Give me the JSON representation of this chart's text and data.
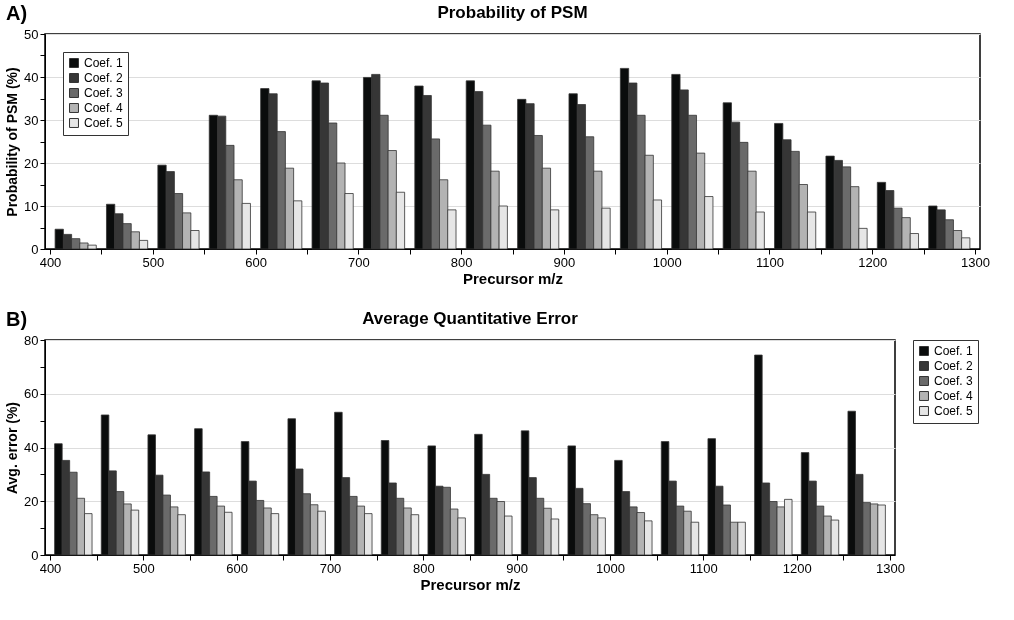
{
  "chart_data": [
    {
      "type": "bar",
      "title": "Probability of PSM",
      "xlabel": "Precursor m/z",
      "ylabel": "Probability of PSM (%)",
      "annotations": [
        "A)"
      ],
      "xlim": [
        400,
        1300
      ],
      "xticks": [
        400,
        {
          "value": 450,
          "label": null
        },
        500,
        {
          "value": 550,
          "label": null
        },
        600,
        {
          "value": 650,
          "label": null
        },
        700,
        {
          "value": 750,
          "label": null
        },
        800,
        {
          "value": 850,
          "label": null
        },
        900,
        {
          "value": 950,
          "label": null
        },
        1000,
        {
          "value": 1050,
          "label": null
        },
        1100,
        {
          "value": 1150,
          "label": null
        },
        1200,
        {
          "value": 1250,
          "label": null
        },
        1300
      ],
      "ylim": [
        0,
        50
      ],
      "yticks": [
        0,
        {
          "value": 5,
          "label": null
        },
        10,
        {
          "value": 15,
          "label": null
        },
        20,
        {
          "value": 25,
          "label": null
        },
        30,
        {
          "value": 35,
          "label": null
        },
        40,
        {
          "value": 45,
          "label": null
        },
        50
      ],
      "grid": "y",
      "legend": "top left",
      "series": [
        {
          "name": "Coef. 1",
          "color": "#0a0c0c",
          "x": [
            409,
            459,
            509,
            559,
            609,
            659,
            709,
            759,
            809,
            859,
            909,
            959,
            1009,
            1059,
            1109,
            1159,
            1209,
            1259
          ],
          "values": [
            4.6,
            10.4,
            19.5,
            31.1,
            37.3,
            39.1,
            39.9,
            37.9,
            39.1,
            34.8,
            36.1,
            42.0,
            40.6,
            34.0,
            29.2,
            21.6,
            15.5,
            10.0
          ]
        },
        {
          "name": "Coef. 2",
          "color": "#363636",
          "x": [
            417,
            467,
            517,
            567,
            617,
            667,
            717,
            767,
            817,
            867,
            917,
            967,
            1017,
            1067,
            1117,
            1167,
            1217,
            1267
          ],
          "values": [
            3.4,
            8.2,
            18.0,
            30.9,
            36.1,
            38.6,
            40.6,
            35.7,
            36.6,
            33.8,
            33.6,
            38.6,
            37.0,
            29.5,
            25.4,
            20.6,
            13.6,
            9.1
          ]
        },
        {
          "name": "Coef. 3",
          "color": "#6a6a6a",
          "x": [
            425,
            475,
            525,
            575,
            625,
            675,
            725,
            775,
            825,
            875,
            925,
            975,
            1025,
            1075,
            1125,
            1175,
            1225,
            1275
          ],
          "values": [
            2.4,
            5.9,
            12.9,
            24.1,
            27.3,
            29.3,
            31.1,
            25.6,
            28.8,
            26.4,
            26.1,
            31.1,
            31.1,
            24.8,
            22.7,
            19.1,
            9.5,
            6.8
          ]
        },
        {
          "name": "Coef. 4",
          "color": "#b3b3b3",
          "x": [
            433,
            483,
            533,
            583,
            633,
            683,
            733,
            783,
            833,
            883,
            933,
            983,
            1033,
            1083,
            1133,
            1183,
            1233,
            1283
          ],
          "values": [
            1.4,
            4.0,
            8.4,
            16.1,
            18.8,
            20.0,
            22.9,
            16.1,
            18.1,
            18.8,
            18.1,
            21.8,
            22.3,
            18.1,
            15.0,
            14.5,
            7.3,
            4.3
          ]
        },
        {
          "name": "Coef. 5",
          "color": "#e6e6e6",
          "x": [
            441,
            491,
            541,
            591,
            641,
            691,
            741,
            791,
            841,
            891,
            941,
            991,
            1041,
            1091,
            1141,
            1191,
            1241,
            1291
          ],
          "values": [
            0.9,
            2.0,
            4.3,
            10.6,
            11.2,
            12.9,
            13.2,
            9.1,
            10.0,
            9.1,
            9.5,
            11.4,
            12.2,
            8.6,
            8.6,
            4.8,
            3.6,
            2.6
          ]
        }
      ]
    },
    {
      "type": "bar",
      "title": "Average Quantitative Error",
      "xlabel": "Precursor m/z",
      "ylabel": "Avg. error (%)",
      "annotations": [
        "B)"
      ],
      "xlim": [
        400,
        1300
      ],
      "xticks": [
        400,
        {
          "value": 450,
          "label": null
        },
        500,
        {
          "value": 550,
          "label": null
        },
        600,
        {
          "value": 650,
          "label": null
        },
        700,
        {
          "value": 750,
          "label": null
        },
        800,
        {
          "value": 850,
          "label": null
        },
        900,
        {
          "value": 950,
          "label": null
        },
        1000,
        {
          "value": 1050,
          "label": null
        },
        1100,
        {
          "value": 1150,
          "label": null
        },
        1200,
        {
          "value": 1250,
          "label": null
        },
        1300
      ],
      "ylim": [
        0,
        80
      ],
      "yticks": [
        0,
        {
          "value": 10,
          "label": null
        },
        20,
        {
          "value": 30,
          "label": null
        },
        40,
        {
          "value": 50,
          "label": null
        },
        60,
        {
          "value": 70,
          "label": null
        },
        80
      ],
      "grid": "y",
      "legend": "right",
      "series": [
        {
          "name": "Coef. 1",
          "color": "#0a0c0c",
          "x": [
            409,
            459,
            509,
            559,
            609,
            659,
            709,
            759,
            809,
            859,
            909,
            959,
            1009,
            1059,
            1109,
            1159,
            1209,
            1259
          ],
          "values": [
            41.4,
            52.1,
            44.7,
            47.0,
            42.2,
            50.7,
            53.1,
            42.6,
            40.6,
            44.9,
            46.2,
            40.6,
            35.2,
            42.2,
            43.3,
            74.4,
            38.1,
            53.5
          ]
        },
        {
          "name": "Coef. 2",
          "color": "#363636",
          "x": [
            417,
            467,
            517,
            567,
            617,
            667,
            717,
            767,
            817,
            867,
            917,
            967,
            1017,
            1067,
            1117,
            1167,
            1217,
            1267
          ],
          "values": [
            35.2,
            31.3,
            29.7,
            30.9,
            27.5,
            32.0,
            28.8,
            26.8,
            25.6,
            30.0,
            28.8,
            24.8,
            23.6,
            27.5,
            25.6,
            26.8,
            27.5,
            30.0
          ]
        },
        {
          "name": "Coef. 3",
          "color": "#6a6a6a",
          "x": [
            425,
            475,
            525,
            575,
            625,
            675,
            725,
            775,
            825,
            875,
            925,
            975,
            1025,
            1075,
            1125,
            1175,
            1225,
            1275
          ],
          "values": [
            30.8,
            23.6,
            22.3,
            21.8,
            20.3,
            22.8,
            21.8,
            21.1,
            25.2,
            21.1,
            21.1,
            19.1,
            17.9,
            18.2,
            18.6,
            19.9,
            18.2,
            19.5
          ]
        },
        {
          "name": "Coef. 4",
          "color": "#b3b3b3",
          "x": [
            433,
            483,
            533,
            583,
            633,
            683,
            733,
            783,
            833,
            883,
            933,
            983,
            1033,
            1083,
            1133,
            1183,
            1233,
            1283
          ],
          "values": [
            21.1,
            19.0,
            17.9,
            18.2,
            17.5,
            18.7,
            18.2,
            17.5,
            17.1,
            19.9,
            17.4,
            15.0,
            15.8,
            16.3,
            12.2,
            17.9,
            14.5,
            19.0
          ]
        },
        {
          "name": "Coef. 5",
          "color": "#e6e6e6",
          "x": [
            441,
            491,
            541,
            591,
            641,
            691,
            741,
            791,
            841,
            891,
            941,
            991,
            1041,
            1091,
            1141,
            1191,
            1241,
            1291
          ],
          "values": [
            15.4,
            16.7,
            15.0,
            15.9,
            15.4,
            16.3,
            15.4,
            15.0,
            13.8,
            14.5,
            13.4,
            13.8,
            12.7,
            12.2,
            12.2,
            20.7,
            13.0,
            18.6
          ]
        }
      ]
    }
  ]
}
